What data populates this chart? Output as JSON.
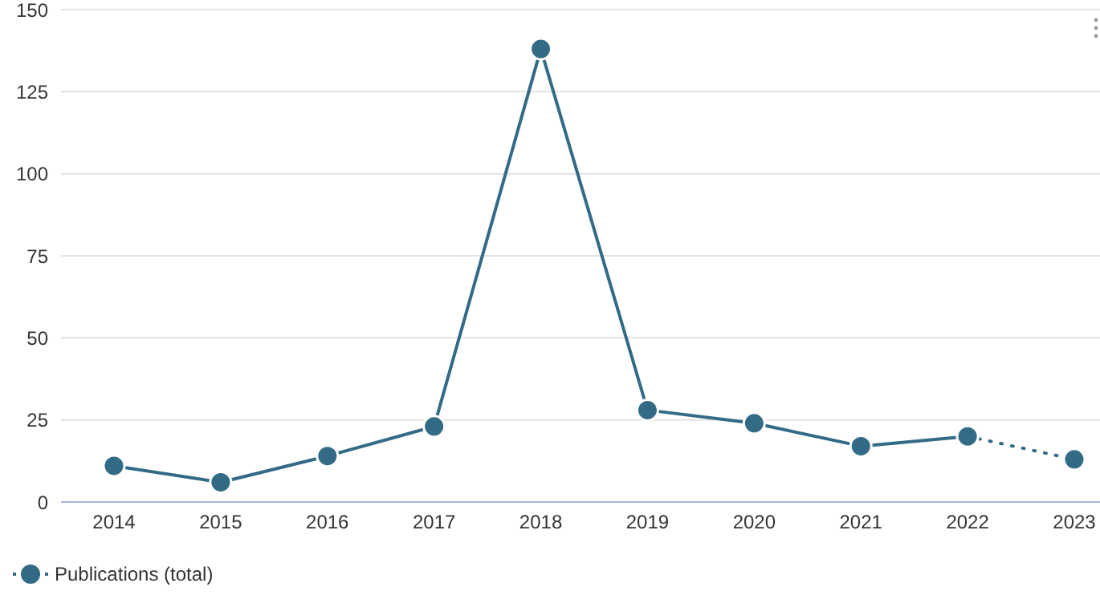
{
  "chart_data": {
    "type": "line",
    "categories": [
      "2014",
      "2015",
      "2016",
      "2017",
      "2018",
      "2019",
      "2020",
      "2021",
      "2022",
      "2023"
    ],
    "series": [
      {
        "name": "Publications (total)",
        "color": "#336b87",
        "values": [
          11,
          6,
          14,
          23,
          138,
          28,
          24,
          17,
          20,
          null
        ],
        "line_style": "solid"
      },
      {
        "color": "#336b87",
        "values": [
          null,
          null,
          null,
          null,
          null,
          null,
          null,
          null,
          20,
          13
        ],
        "line_style": "dotted"
      }
    ],
    "ylim": [
      0,
      150
    ],
    "yticks": [
      0,
      25,
      50,
      75,
      100,
      125,
      150
    ],
    "grid": "y",
    "legend": "bottom left",
    "marker": "circle"
  }
}
